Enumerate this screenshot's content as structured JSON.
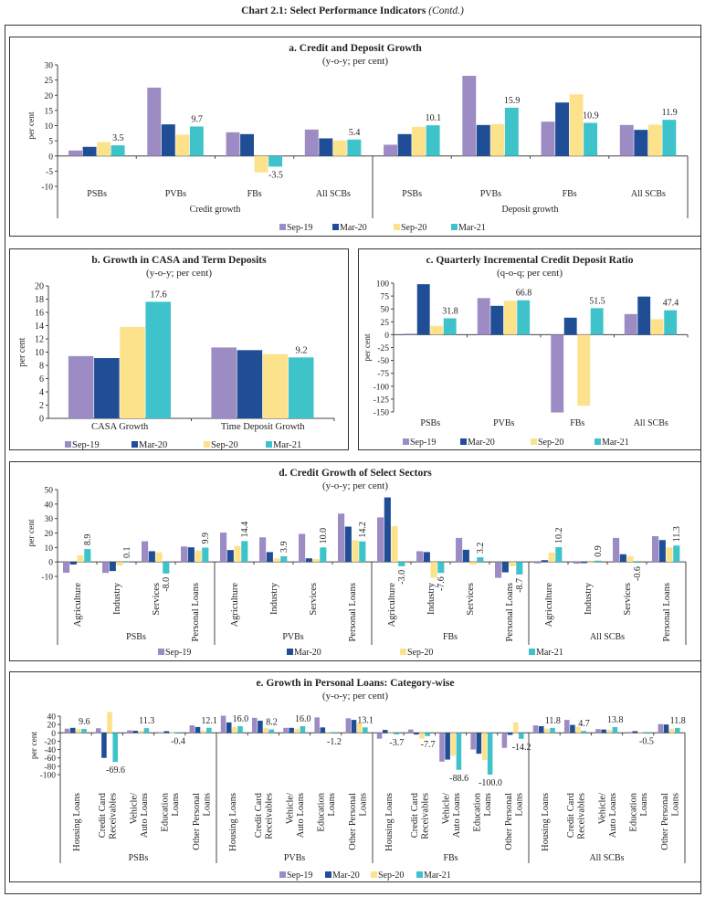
{
  "header": {
    "title": "Chart 2.1: Select Performance Indicators",
    "contd": "(Contd.)"
  },
  "colors": {
    "Sep-19": "#9d8bc4",
    "Mar-20": "#1f4e96",
    "Sep-20": "#fde28c",
    "Mar-21": "#3ec3cb"
  },
  "chart_data": [
    {
      "type": "bar",
      "title": "a. Credit and Deposit Growth",
      "subtitle": "(y-o-y; per cent)",
      "ylabel": "per cent",
      "ylim": [
        -10,
        30
      ],
      "yticks": [
        30,
        25,
        20,
        15,
        10,
        5,
        0,
        -5,
        -10
      ],
      "grid": false,
      "legend": "bottom",
      "series": [
        "Sep-19",
        "Mar-20",
        "Sep-20",
        "Mar-21"
      ],
      "labeled_series": "Mar-21",
      "groups": [
        {
          "label": "Credit growth",
          "categories": [
            {
              "label": "PSBs",
              "values": [
                1.8,
                3.0,
                4.6,
                3.5
              ]
            },
            {
              "label": "PVBs",
              "values": [
                22.5,
                10.4,
                7.0,
                9.7
              ]
            },
            {
              "label": "FBs",
              "values": [
                7.8,
                7.2,
                -5.4,
                -3.5
              ]
            },
            {
              "label": "All SCBs",
              "values": [
                8.7,
                5.8,
                5.1,
                5.4
              ]
            }
          ]
        },
        {
          "label": "Deposit growth",
          "categories": [
            {
              "label": "PSBs",
              "values": [
                3.7,
                7.2,
                9.6,
                10.1
              ]
            },
            {
              "label": "PVBs",
              "values": [
                26.4,
                10.2,
                10.5,
                15.9
              ]
            },
            {
              "label": "FBs",
              "values": [
                11.3,
                17.6,
                20.3,
                10.9
              ]
            },
            {
              "label": "All SCBs",
              "values": [
                10.2,
                8.6,
                10.3,
                11.9
              ]
            }
          ]
        }
      ]
    },
    {
      "type": "bar",
      "title": "b. Growth in CASA and Term Deposits",
      "subtitle": "(y-o-y; per cent)",
      "ylabel": "per cent",
      "ylim": [
        0,
        20
      ],
      "yticks": [
        20,
        18,
        16,
        14,
        12,
        10,
        8,
        6,
        4,
        2,
        0
      ],
      "grid": false,
      "legend": "bottom",
      "series": [
        "Sep-19",
        "Mar-20",
        "Sep-20",
        "Mar-21"
      ],
      "labeled_series": "Mar-21",
      "groups": [
        {
          "label": "",
          "categories": [
            {
              "label": "CASA Growth",
              "values": [
                9.4,
                9.1,
                13.8,
                17.6
              ]
            },
            {
              "label": "Time Deposit Growth",
              "values": [
                10.7,
                10.3,
                9.7,
                9.2
              ]
            }
          ]
        }
      ]
    },
    {
      "type": "bar",
      "title": "c. Quarterly Incremental Credit Deposit Ratio",
      "subtitle": "(q-o-q; per cent)",
      "ylabel": "per cent",
      "ylim": [
        -150,
        100
      ],
      "yticks": [
        100,
        75,
        50,
        25,
        0,
        -25,
        -50,
        -75,
        -100,
        -125,
        -150
      ],
      "grid": false,
      "legend": "bottom",
      "series": [
        "Sep-19",
        "Mar-20",
        "Sep-20",
        "Mar-21"
      ],
      "labeled_series": "Mar-21",
      "groups": [
        {
          "label": "",
          "categories": [
            {
              "label": "PSBs",
              "values": [
                2,
                98,
                17,
                31.8
              ]
            },
            {
              "label": "PVBs",
              "values": [
                71,
                56,
                66,
                66.8
              ]
            },
            {
              "label": "FBs",
              "values": [
                -151,
                33,
                -138,
                51.5
              ]
            },
            {
              "label": "All SCBs",
              "values": [
                40,
                74,
                30,
                47.4
              ]
            }
          ]
        }
      ]
    },
    {
      "type": "bar",
      "title": "d. Credit Growth of Select Sectors",
      "subtitle": "(y-o-y; per cent)",
      "ylabel": "per cent",
      "ylim": [
        -10,
        50
      ],
      "yticks": [
        50,
        40,
        30,
        20,
        10,
        0,
        -10
      ],
      "grid": false,
      "legend": "bottom",
      "series": [
        "Sep-19",
        "Mar-20",
        "Sep-20",
        "Mar-21"
      ],
      "labeled_series": "Mar-21",
      "groups": [
        {
          "label": "PSBs",
          "categories": [
            {
              "label": "Agriculture",
              "values": [
                -7.5,
                -1.8,
                4.5,
                8.9
              ]
            },
            {
              "label": "Industry",
              "values": [
                -7.6,
                -6.3,
                -2.5,
                0.1
              ]
            },
            {
              "label": "Services",
              "values": [
                14.3,
                7.4,
                6.6,
                -8.0
              ]
            },
            {
              "label": "Personal Loans",
              "values": [
                10.7,
                10.1,
                7.8,
                9.9
              ]
            }
          ]
        },
        {
          "label": "PVBs",
          "categories": [
            {
              "label": "Agriculture",
              "values": [
                20.3,
                8.2,
                11.0,
                14.4
              ]
            },
            {
              "label": "Industry",
              "values": [
                17.0,
                6.8,
                2.5,
                3.9
              ]
            },
            {
              "label": "Services",
              "values": [
                19.4,
                2.5,
                2.0,
                10.0
              ]
            },
            {
              "label": "Personal Loans",
              "values": [
                33.4,
                24.4,
                15.0,
                14.2
              ]
            }
          ]
        },
        {
          "label": "FBs",
          "categories": [
            {
              "label": "Agriculture",
              "values": [
                30.8,
                44.6,
                24.7,
                -3.0
              ]
            },
            {
              "label": "Industry",
              "values": [
                7.4,
                6.8,
                -11.0,
                -7.6
              ]
            },
            {
              "label": "Services",
              "values": [
                16.6,
                8.4,
                -2.0,
                3.2
              ]
            },
            {
              "label": "Personal Loans",
              "values": [
                -11.0,
                -7.2,
                -3.0,
                -8.7
              ]
            }
          ]
        },
        {
          "label": "All SCBs",
          "categories": [
            {
              "label": "Agriculture",
              "values": [
                -1.0,
                1.2,
                6.5,
                10.2
              ]
            },
            {
              "label": "Industry",
              "values": [
                -1.2,
                -0.8,
                -0.8,
                0.9
              ]
            },
            {
              "label": "Services",
              "values": [
                16.6,
                5.3,
                4.0,
                -0.6
              ]
            },
            {
              "label": "Personal Loans",
              "values": [
                17.8,
                15.1,
                10.0,
                11.3
              ]
            }
          ]
        }
      ]
    },
    {
      "type": "bar",
      "title": "e. Growth in Personal Loans: Category-wise",
      "subtitle": "(y-o-y; per cent)",
      "ylabel": "per cent",
      "ylim": [
        -100,
        40
      ],
      "yticks": [
        40,
        20,
        0,
        -20,
        -40,
        -60,
        -80,
        -100
      ],
      "grid": false,
      "legend": "bottom",
      "series": [
        "Sep-19",
        "Mar-20",
        "Sep-20",
        "Mar-21"
      ],
      "labeled_series": "Mar-21",
      "groups": [
        {
          "label": "PSBs",
          "categories": [
            {
              "label": [
                "Housing Loans"
              ],
              "values": [
                10,
                12,
                9,
                9.6
              ]
            },
            {
              "label": [
                "Credit Card",
                "Receivables"
              ],
              "values": [
                11,
                -60,
                50,
                -69.6
              ]
            },
            {
              "label": [
                "Vehicle/",
                "Auto Loans"
              ],
              "values": [
                6,
                5,
                5,
                11.3
              ]
            },
            {
              "label": [
                "Education",
                "Loans"
              ],
              "values": [
                1,
                4,
                1,
                -0.4
              ]
            },
            {
              "label": [
                "Other Personal",
                "Loans"
              ],
              "values": [
                18,
                14,
                5,
                12.1
              ]
            }
          ]
        },
        {
          "label": "PVBs",
          "categories": [
            {
              "label": [
                "Housing Loans"
              ],
              "values": [
                41,
                25,
                14,
                16.0
              ]
            },
            {
              "label": [
                "Credit Card",
                "Receivables"
              ],
              "values": [
                36,
                29,
                12,
                8.2
              ]
            },
            {
              "label": [
                "Vehicle/",
                "Auto Loans"
              ],
              "values": [
                12,
                12,
                10,
                16.0
              ]
            },
            {
              "label": [
                "Education",
                "Loans"
              ],
              "values": [
                37,
                13,
                2,
                -1.2
              ]
            },
            {
              "label": [
                "Other Personal",
                "Loans"
              ],
              "values": [
                35,
                31,
                24,
                13.1
              ]
            }
          ]
        },
        {
          "label": "FBs",
          "categories": [
            {
              "label": [
                "Housing Loans"
              ],
              "values": [
                -14,
                7,
                -1,
                -3.7
              ]
            },
            {
              "label": [
                "Credit Card",
                "Receivables"
              ],
              "values": [
                8,
                -4,
                -14,
                -7.7
              ]
            },
            {
              "label": [
                "Vehicle/",
                "Auto Loans"
              ],
              "values": [
                -69,
                -64,
                -55,
                -88.6
              ]
            },
            {
              "label": [
                "Education",
                "Loans"
              ],
              "values": [
                -40,
                -50,
                -65,
                -100.0
              ]
            },
            {
              "label": [
                "Other Personal",
                "Loans"
              ],
              "values": [
                -36,
                -5,
                25,
                -14.2
              ]
            }
          ]
        },
        {
          "label": "All SCBs",
          "categories": [
            {
              "label": [
                "Housing Loans"
              ],
              "values": [
                18,
                16,
                10,
                11.8
              ]
            },
            {
              "label": [
                "Credit Card",
                "Receivables"
              ],
              "values": [
                31,
                19,
                15,
                4.7
              ]
            },
            {
              "label": [
                "Vehicle/",
                "Auto Loans"
              ],
              "values": [
                9,
                8,
                7,
                13.8
              ]
            },
            {
              "label": [
                "Education",
                "Loans"
              ],
              "values": [
                2,
                4,
                2,
                -0.5
              ]
            },
            {
              "label": [
                "Other Personal",
                "Loans"
              ],
              "values": [
                21,
                20,
                10,
                11.8
              ]
            }
          ]
        }
      ]
    }
  ]
}
